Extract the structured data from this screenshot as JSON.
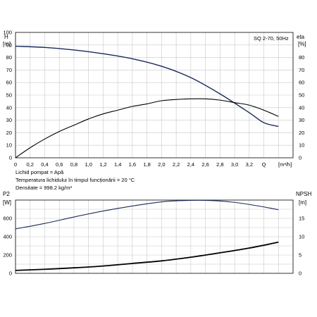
{
  "chart_data": [
    {
      "type": "line",
      "title": "SQ 2-70, 50Hz",
      "ylabel_left": "H",
      "ylabel_left_unit": "[m]",
      "ylabel_right": "eta",
      "ylabel_right_unit": "[%]",
      "xlabel": "Q [m³/h]",
      "xlim": [
        0,
        3.8
      ],
      "ylim_left": [
        0,
        100
      ],
      "ylim_right": [
        0,
        100
      ],
      "grid": true,
      "x_ticks": [
        "0",
        "0,2",
        "0,4",
        "0,6",
        "0,8",
        "1,0",
        "1,2",
        "1,4",
        "1,6",
        "1,8",
        "2,0",
        "2,2",
        "2,4",
        "2,6",
        "2,8",
        "3,0",
        "3,2",
        "Q"
      ],
      "y_ticks_left": [
        "0",
        "10",
        "20",
        "30",
        "40",
        "50",
        "60",
        "70",
        "80",
        "90",
        "100"
      ],
      "y_ticks_right": [
        "0",
        "10",
        "20",
        "30",
        "40",
        "50",
        "60",
        "70",
        "80"
      ],
      "series": [
        {
          "key": "H",
          "axis": "left",
          "x": [
            0,
            0.4,
            0.8,
            1.2,
            1.6,
            2.0,
            2.4,
            2.8,
            3.2,
            3.4,
            3.6
          ],
          "y": [
            89,
            88,
            86,
            83,
            79,
            73,
            64,
            51,
            36,
            28,
            25
          ]
        },
        {
          "key": "eta",
          "axis": "right",
          "x": [
            0,
            0.2,
            0.4,
            0.6,
            0.8,
            1.0,
            1.2,
            1.4,
            1.6,
            1.8,
            2.0,
            2.2,
            2.4,
            2.6,
            2.8,
            3.0,
            3.2,
            3.4,
            3.6
          ],
          "y": [
            0,
            8,
            15,
            21,
            26,
            31,
            35,
            38,
            41,
            43,
            45.5,
            46.5,
            47,
            47,
            46,
            44,
            42,
            38,
            33
          ]
        }
      ]
    },
    {
      "type": "line",
      "ylabel_left": "P2",
      "ylabel_left_unit": "[W]",
      "ylabel_right": "NPSH",
      "ylabel_right_unit": "[m]",
      "xlim": [
        0,
        3.8
      ],
      "ylim_left": [
        0,
        800
      ],
      "ylim_right": [
        0,
        20
      ],
      "grid": true,
      "y_ticks_left": [
        "0",
        "200",
        "400",
        "600"
      ],
      "y_ticks_right": [
        "0",
        "5",
        "10",
        "15"
      ],
      "series": [
        {
          "key": "P2",
          "axis": "left",
          "x": [
            0,
            0.4,
            0.8,
            1.2,
            1.6,
            2.0,
            2.2,
            2.4,
            2.6,
            2.8,
            3.0,
            3.2,
            3.4,
            3.6
          ],
          "y": [
            485,
            545,
            615,
            680,
            735,
            780,
            792,
            797,
            797,
            790,
            775,
            752,
            725,
            695
          ]
        },
        {
          "key": "NPSH",
          "axis": "right",
          "x": [
            0,
            0.4,
            0.8,
            1.2,
            1.6,
            2.0,
            2.4,
            2.8,
            3.2,
            3.6
          ],
          "y": [
            0.8,
            1.1,
            1.5,
            2.0,
            2.7,
            3.4,
            4.4,
            5.6,
            6.9,
            8.5
          ]
        }
      ]
    }
  ],
  "notes": {
    "line1": "Lichid pompat = Apă",
    "line2": "Temperatura lichidului în timpul funcționării = 20 °C",
    "line3": "Densitate = 998.2 kg/m³"
  },
  "colors": {
    "H": "#1a2a5a",
    "eta": "#000000",
    "P2": "#1a2a5a",
    "NPSH": "#000000",
    "grid": "#c8c8c8"
  }
}
